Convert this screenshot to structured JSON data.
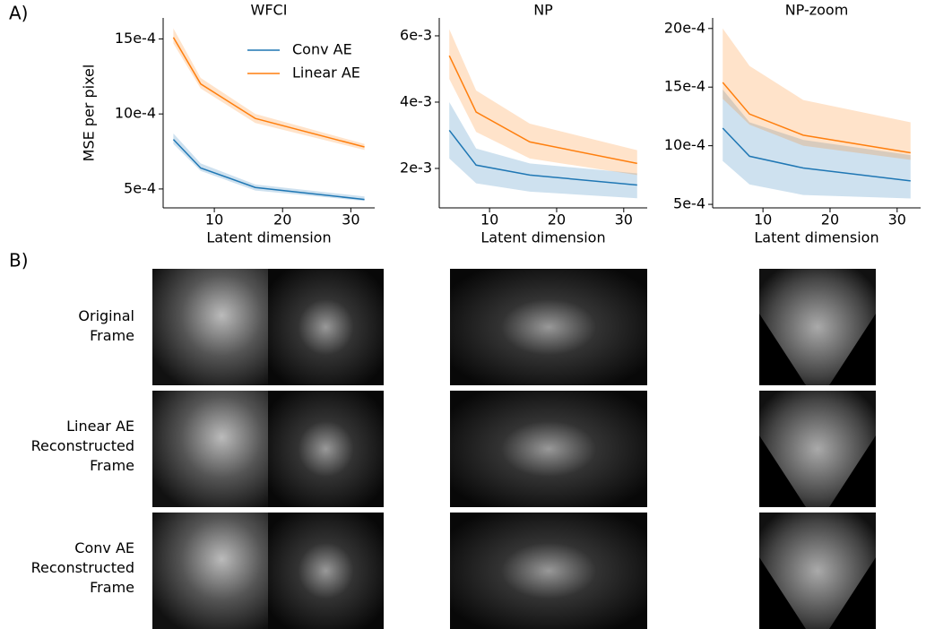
{
  "panel_labels": [
    "A)",
    "B)"
  ],
  "chart_data": [
    {
      "type": "line",
      "title": "WFCI",
      "x_label": "Latent dimension",
      "y_label": "MSE per pixel",
      "legend": "upper right",
      "x": [
        4,
        8,
        16,
        32
      ],
      "xlim": [
        2.5,
        33.5
      ],
      "xticks": [
        10,
        20,
        30
      ],
      "ylim": [
        0.000374,
        0.00164
      ],
      "yticks": [
        {
          "value": 0.0005,
          "label": "5e-4"
        },
        {
          "value": 0.001,
          "label": "10e-4"
        },
        {
          "value": 0.0015,
          "label": "15e-4"
        }
      ],
      "series": [
        {
          "name": "Conv AE",
          "color": "#1f77b4",
          "values": [
            0.00083,
            0.00064,
            0.00051,
            0.00043
          ],
          "upper": [
            0.00087,
            0.00067,
            0.00053,
            0.00045
          ],
          "lower": [
            0.0008,
            0.00062,
            0.00049,
            0.00042
          ]
        },
        {
          "name": "Linear AE",
          "color": "#ff7f0e",
          "values": [
            0.00151,
            0.0012,
            0.00097,
            0.00078
          ],
          "upper": [
            0.00157,
            0.00124,
            0.001,
            0.0008
          ],
          "lower": [
            0.00147,
            0.00117,
            0.00094,
            0.00076
          ]
        }
      ]
    },
    {
      "type": "line",
      "title": "NP",
      "x_label": "Latent dimension",
      "x": [
        4,
        8,
        16,
        32
      ],
      "xlim": [
        2.5,
        33.5
      ],
      "xticks": [
        10,
        20,
        30
      ],
      "ylim": [
        0.00081,
        0.00654
      ],
      "yticks": [
        {
          "value": 0.002,
          "label": "2e-3"
        },
        {
          "value": 0.004,
          "label": "4e-3"
        },
        {
          "value": 0.006,
          "label": "6e-3"
        }
      ],
      "series": [
        {
          "name": "Conv AE",
          "color": "#1f77b4",
          "values": [
            0.00315,
            0.0021,
            0.0018,
            0.0015
          ],
          "upper": [
            0.004,
            0.0026,
            0.00215,
            0.00185
          ],
          "lower": [
            0.0023,
            0.00155,
            0.0013,
            0.0011
          ]
        },
        {
          "name": "Linear AE",
          "color": "#ff7f0e",
          "values": [
            0.0054,
            0.0037,
            0.0028,
            0.00215
          ],
          "upper": [
            0.0062,
            0.00435,
            0.00335,
            0.00255
          ],
          "lower": [
            0.0047,
            0.0031,
            0.0023,
            0.0018
          ]
        }
      ]
    },
    {
      "type": "line",
      "title": "NP-zoom",
      "x_label": "Latent dimension",
      "x": [
        4,
        8,
        16,
        32
      ],
      "xlim": [
        2.5,
        33.5
      ],
      "xticks": [
        10,
        20,
        30
      ],
      "ylim": [
        0.00047,
        0.00209
      ],
      "yticks": [
        {
          "value": 0.0005,
          "label": "5e-4"
        },
        {
          "value": 0.001,
          "label": "10e-4"
        },
        {
          "value": 0.0015,
          "label": "15e-4"
        },
        {
          "value": 0.002,
          "label": "20e-4"
        }
      ],
      "series": [
        {
          "name": "Conv AE",
          "color": "#1f77b4",
          "values": [
            0.00115,
            0.00091,
            0.00081,
            0.0007
          ],
          "upper": [
            0.00148,
            0.0012,
            0.00105,
            0.00092
          ],
          "lower": [
            0.00087,
            0.00067,
            0.00058,
            0.00055
          ]
        },
        {
          "name": "Linear AE",
          "color": "#ff7f0e",
          "values": [
            0.00154,
            0.00127,
            0.00109,
            0.00094
          ],
          "upper": [
            0.002,
            0.00168,
            0.00139,
            0.0012
          ],
          "lower": [
            0.0014,
            0.00118,
            0.001,
            0.00088
          ]
        }
      ]
    }
  ],
  "rows": [
    "Original\nFrame",
    "Linear AE\nReconstructed\nFrame",
    "Conv AE\nReconstructed\nFrame"
  ]
}
